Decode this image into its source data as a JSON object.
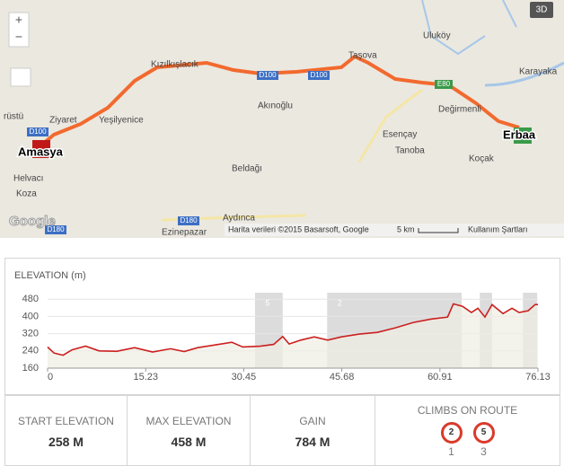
{
  "map": {
    "button_3d": "3D",
    "zoom_in": "+",
    "zoom_out": "−",
    "labels": [
      "Uluköy",
      "Karayaka",
      "Taşova",
      "Kızılkışlacık",
      "Akınoğlu",
      "Ziyaret",
      "Yeşilyenice",
      "Değirmenli",
      "Esençay",
      "Tanoba",
      "Koçak",
      "Beldağı",
      "Helvacı",
      "Koza",
      "Aydınca",
      "Ezinepazar",
      "rüstü"
    ],
    "roads": [
      "D100",
      "D100",
      "D100",
      "D180",
      "D180",
      "E80"
    ],
    "start": "Amasya",
    "end": "Erbaa",
    "attribution": "Harita verileri ©2015 Basarsoft, Google",
    "scale": "5 km",
    "terms": "Kullanım Şartları",
    "logo": "Google"
  },
  "chart_data": {
    "type": "line",
    "title": "ELEVATION (m)",
    "color": "#cc1f1f",
    "x": [
      0,
      1,
      2.4,
      3.8,
      5.9,
      8,
      10.7,
      13.5,
      16.3,
      19.1,
      21.2,
      23.3,
      26.1,
      28.6,
      30.3,
      33,
      35.1,
      36.5,
      37.5,
      39.3,
      41.4,
      43.5,
      45.6,
      48.4,
      51.2,
      54,
      56.8,
      59.6,
      62.1,
      63,
      64.4,
      65.8,
      66.8,
      67.9,
      69,
      70.7,
      72.1,
      73.2,
      74.6,
      75.7,
      76.13
    ],
    "values": [
      258,
      230,
      220,
      245,
      262,
      240,
      238,
      255,
      235,
      250,
      237,
      255,
      268,
      280,
      258,
      262,
      270,
      307,
      272,
      290,
      305,
      290,
      305,
      318,
      326,
      347,
      372,
      388,
      397,
      458,
      447,
      418,
      438,
      397,
      455,
      413,
      438,
      418,
      426,
      455,
      455
    ],
    "xlim": [
      0,
      76.13
    ],
    "ylim": [
      160,
      510
    ],
    "xticks": [
      0,
      15.23,
      30.45,
      45.68,
      60.91,
      76.13
    ],
    "yticks": [
      160,
      240,
      320,
      400,
      480
    ],
    "climbs": [
      {
        "label": "5",
        "start": 32.2,
        "end": 36.5
      },
      {
        "label": "2",
        "start": 43.4,
        "end": 64.3
      },
      {
        "start": 67.1,
        "end": 69.0
      },
      {
        "start": 73.8,
        "end": 76.0
      }
    ]
  },
  "stats": [
    {
      "label": "START ELEVATION",
      "value": "258 M"
    },
    {
      "label": "MAX ELEVATION",
      "value": "458 M"
    },
    {
      "label": "GAIN",
      "value": "784 M"
    }
  ],
  "climbs_on_route": {
    "title": "CLIMBS ON ROUTE",
    "items": [
      {
        "category": "2",
        "count": "1"
      },
      {
        "category": "5",
        "count": "3"
      }
    ]
  }
}
